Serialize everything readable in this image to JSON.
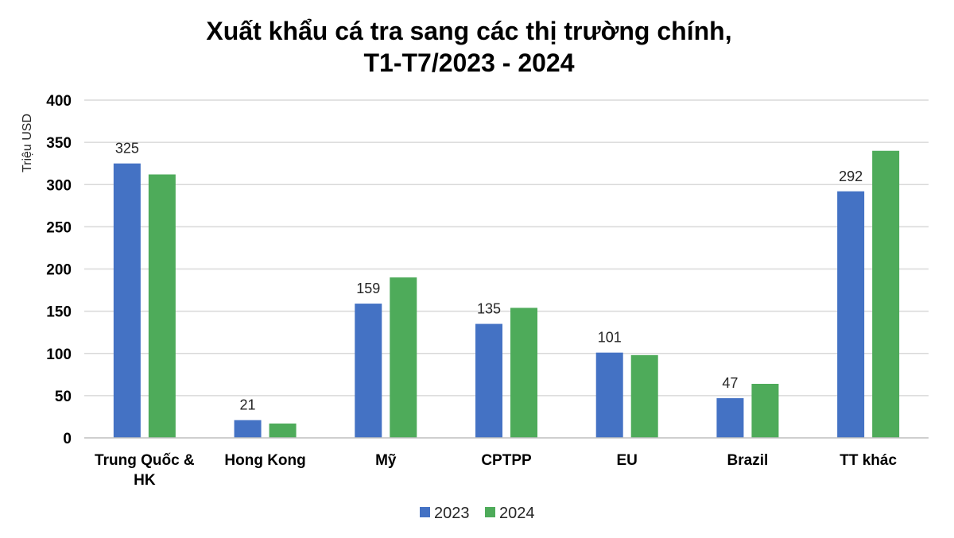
{
  "chart_data": {
    "type": "bar",
    "title_lines": [
      "Xuất khẩu cá tra sang các thị trường chính,",
      "T1-T7/2023 - 2024"
    ],
    "ylabel": "Triệu USD",
    "xlabel": "",
    "ylim": [
      0,
      400
    ],
    "yticks": [
      0,
      50,
      100,
      150,
      200,
      250,
      300,
      350,
      400
    ],
    "grid": true,
    "legend_position": "bottom",
    "categories": [
      [
        "Trung Quốc &",
        "HK"
      ],
      [
        "Hong Kong"
      ],
      [
        "Mỹ"
      ],
      [
        "CPTPP"
      ],
      [
        "EU"
      ],
      [
        "Brazil"
      ],
      [
        "TT khác"
      ]
    ],
    "series": [
      {
        "name": "2023",
        "color": "#4472c4",
        "values": [
          325,
          21,
          159,
          135,
          101,
          47,
          292
        ],
        "labels": [
          "325",
          "21",
          "159",
          "135",
          "101",
          "47",
          "292"
        ]
      },
      {
        "name": "2024",
        "color": "#4eab5a",
        "values": [
          312,
          17,
          190,
          154,
          98,
          64,
          340
        ],
        "labels": [
          "",
          "",
          "",
          "",
          "",
          "",
          ""
        ]
      }
    ]
  }
}
